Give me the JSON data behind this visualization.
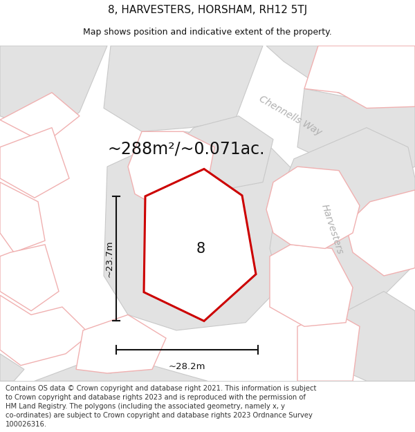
{
  "title": "8, HARVESTERS, HORSHAM, RH12 5TJ",
  "subtitle": "Map shows position and indicative extent of the property.",
  "area_text": "~288m²/~0.071ac.",
  "label_number": "8",
  "dim_height": "~23.7m",
  "dim_width": "~28.2m",
  "road_label_1": "Chennells Way",
  "road_label_2": "Harvesters",
  "footer_lines": [
    "Contains OS data © Crown copyright and database right 2021. This information is subject",
    "to Crown copyright and database rights 2023 and is reproduced with the permission of",
    "HM Land Registry. The polygons (including the associated geometry, namely x, y",
    "co-ordinates) are subject to Crown copyright and database rights 2023 Ordnance Survey",
    "100026316."
  ],
  "map_bg": "#f7f7f7",
  "gray_fill": "#e2e2e2",
  "gray_edge": "#c8c8c8",
  "white_fill": "#ffffff",
  "pink_edge": "#f0b0b0",
  "pink_fill": "#fdf5f5",
  "highlight_stroke": "#cc0000",
  "dim_line_color": "#111111",
  "text_color": "#111111",
  "road_text_color": "#b0b0b0",
  "footer_color": "#333333",
  "title_fontsize": 11,
  "subtitle_fontsize": 9,
  "area_fontsize": 17,
  "label_fontsize": 15,
  "dim_fontsize": 9.5,
  "road_fontsize": 10,
  "footer_fontsize": 7.2
}
